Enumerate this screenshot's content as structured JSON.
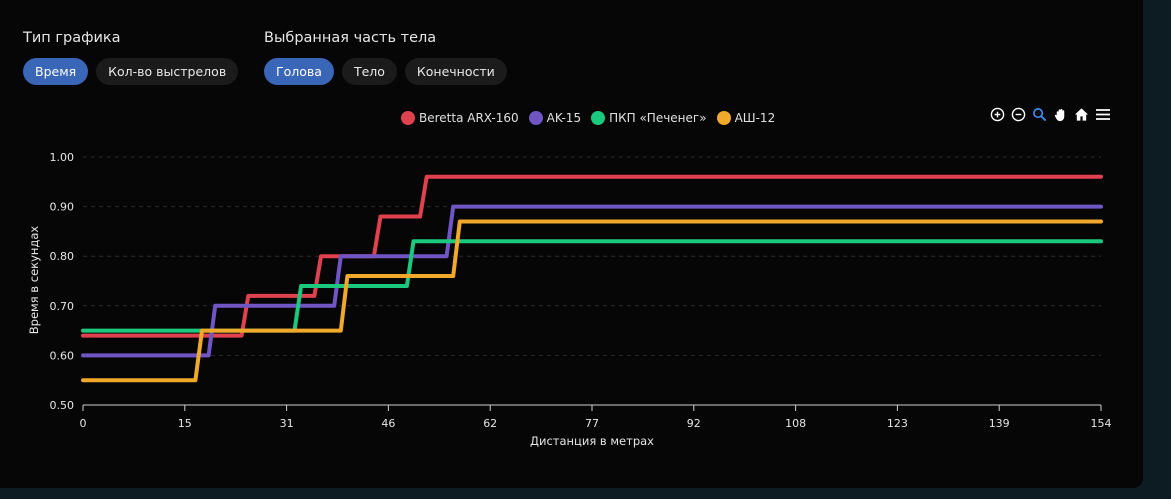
{
  "controls": {
    "chart_type": {
      "label": "Тип графика",
      "options": [
        "Время",
        "Кол-во выстрелов"
      ],
      "selected": "Время"
    },
    "body_part": {
      "label": "Выбранная часть тела",
      "options": [
        "Голова",
        "Тело",
        "Конечности"
      ],
      "selected": "Голова"
    }
  },
  "toolbar": {
    "icons": [
      "zoom-in-icon",
      "zoom-out-icon",
      "zoom-select-icon",
      "pan-icon",
      "home-icon",
      "menu-icon"
    ]
  },
  "chart_data": {
    "type": "line",
    "step": true,
    "xlabel": "Дистанция в метрах",
    "ylabel": "Время в секундах",
    "xlim": [
      0,
      154
    ],
    "ylim": [
      0.5,
      1.0
    ],
    "x_ticks": [
      "0",
      "15",
      "31",
      "46",
      "62",
      "77",
      "92",
      "108",
      "123",
      "139",
      "154"
    ],
    "y_ticks": [
      "0.50",
      "0.60",
      "0.70",
      "0.80",
      "0.90",
      "1.00"
    ],
    "grid": "horizontal-dashed",
    "legend_position": "top-center",
    "series": [
      {
        "name": "Beretta ARX-160",
        "color": "#e0414f",
        "points": [
          [
            0,
            0.64
          ],
          [
            24,
            0.64
          ],
          [
            25,
            0.72
          ],
          [
            35,
            0.72
          ],
          [
            36,
            0.8
          ],
          [
            44,
            0.8
          ],
          [
            45,
            0.88
          ],
          [
            51,
            0.88
          ],
          [
            52,
            0.96
          ],
          [
            154,
            0.96
          ]
        ]
      },
      {
        "name": "AK-15",
        "color": "#7055c4",
        "points": [
          [
            0,
            0.6
          ],
          [
            19,
            0.6
          ],
          [
            20,
            0.7
          ],
          [
            38,
            0.7
          ],
          [
            39,
            0.8
          ],
          [
            55,
            0.8
          ],
          [
            56,
            0.9
          ],
          [
            154,
            0.9
          ]
        ]
      },
      {
        "name": "ПКП «Печенег»",
        "color": "#1bc97e",
        "points": [
          [
            0,
            0.65
          ],
          [
            32,
            0.65
          ],
          [
            33,
            0.74
          ],
          [
            49,
            0.74
          ],
          [
            50,
            0.83
          ],
          [
            154,
            0.83
          ]
        ]
      },
      {
        "name": "АШ-12",
        "color": "#f0a92a",
        "points": [
          [
            0,
            0.55
          ],
          [
            17,
            0.55
          ],
          [
            18,
            0.65
          ],
          [
            39,
            0.65
          ],
          [
            40,
            0.76
          ],
          [
            56,
            0.76
          ],
          [
            57,
            0.87
          ],
          [
            154,
            0.87
          ]
        ]
      }
    ]
  }
}
